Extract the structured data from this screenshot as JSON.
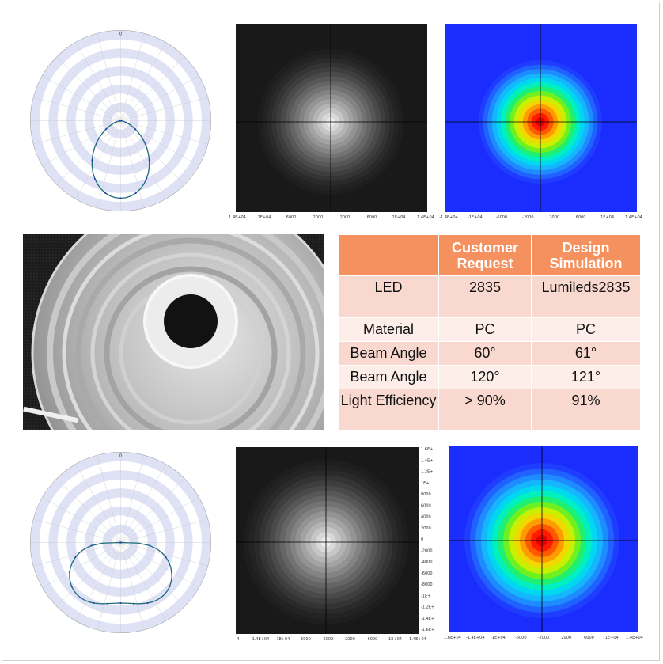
{
  "colors": {
    "header_bg": "#f4915f",
    "row_odd": "#f9d9cf",
    "row_even": "#fdeeea",
    "ring_fill": "#dfe2f5",
    "curve": "#1b6b7a",
    "map_bg_blue": "#1b2cff"
  },
  "top_row": {
    "polar_top_label": "0",
    "gray_axis_ticks": [
      "1.4E+04",
      "1E+04",
      "6000",
      "2000",
      "2000",
      "6000",
      "1E+04",
      "1.4E+04"
    ],
    "color_axis_ticks": [
      "-1.4E+04",
      "-1E+04",
      "-6000",
      "-2000",
      "2000",
      "6000",
      "1E+04",
      "1.4E+04"
    ]
  },
  "bottom_row": {
    "polar_top_label": "0",
    "gray_axis_ticks": [
      "-4",
      "-1.4E+04",
      "-1E+04",
      "-6000",
      "-2000",
      "2000",
      "6000",
      "1E+04",
      "1.4E+04"
    ],
    "gray_side_ticks": [
      "1.6E+",
      "1.4E+",
      "1.2E+",
      "1E+",
      "8000",
      "6000",
      "4000",
      "2000",
      "0",
      "-2000",
      "-4000",
      "-6000",
      "-8000",
      "-1E+",
      "-1.2E+",
      "-1.4E+",
      "-1.6E+"
    ],
    "color_axis_ticks": [
      "1.6E+04",
      "-1.4E+04",
      "-1E+04",
      "-6000",
      "-2000",
      "2000",
      "6000",
      "1E+04",
      "1.4E+04"
    ]
  },
  "table": {
    "headers": [
      "",
      "Customer Request",
      "Design Simulation"
    ],
    "rows": [
      {
        "label": "LED",
        "request": "2835",
        "simulation": "Lumileds2835"
      },
      {
        "label": "Material",
        "request": "PC",
        "simulation": "PC"
      },
      {
        "label": "Beam Angle",
        "request": "60°",
        "simulation": "61°"
      },
      {
        "label": "Beam Angle",
        "request": "120°",
        "simulation": "121°"
      },
      {
        "label": "Light Efficiency",
        "request": "> 90%",
        "simulation": "91%"
      }
    ]
  },
  "photo": {
    "icon": "lens-photo"
  }
}
